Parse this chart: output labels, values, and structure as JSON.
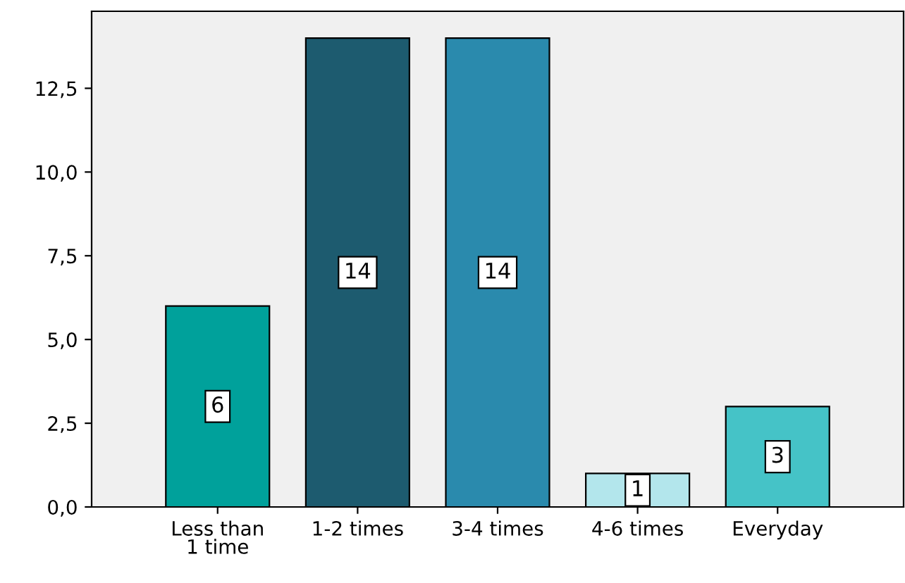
{
  "chart_data": {
    "type": "bar",
    "categories": [
      "Less than\n1 time",
      "1-2 times",
      "3-4 times",
      "4-6 times",
      "Everyday"
    ],
    "values": [
      6,
      14,
      14,
      1,
      3
    ],
    "colors": [
      "#00a19b",
      "#1d5b6f",
      "#2a8aad",
      "#b3e6ec",
      "#45c3c7"
    ],
    "ylim": [
      0,
      14.8
    ],
    "yticks": [
      {
        "value": 0,
        "label": "0,0"
      },
      {
        "value": 2.5,
        "label": "2,5"
      },
      {
        "value": 5,
        "label": "5,0"
      },
      {
        "value": 7.5,
        "label": "7,5"
      },
      {
        "value": 10,
        "label": "10,0"
      },
      {
        "value": 12.5,
        "label": "12,5"
      }
    ],
    "data_labels": true,
    "grid": false
  }
}
